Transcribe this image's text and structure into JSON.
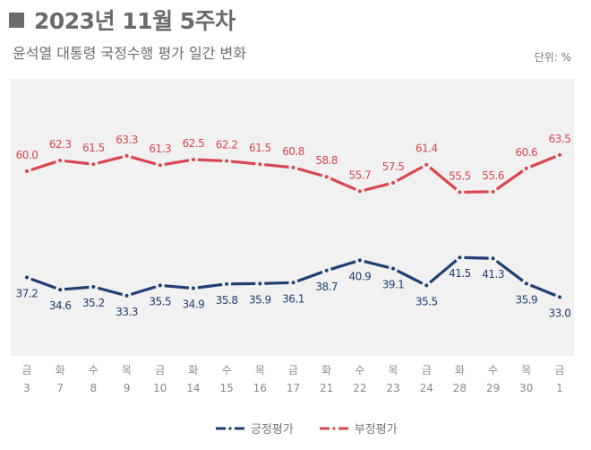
{
  "header": {
    "title": "2023년 11월 5주차",
    "subtitle": "윤석열 대통령 국정수행 평가 일간 변화",
    "unit": "단위: %"
  },
  "chart_data": {
    "type": "line",
    "title": "2023년 11월 5주차",
    "subtitle": "윤석열 대통령 국정수행 평가 일간 변화",
    "unit": "%",
    "xlabel": "",
    "ylabel": "",
    "x_weekday": [
      "금",
      "화",
      "수",
      "목",
      "금",
      "화",
      "수",
      "목",
      "금",
      "화",
      "수",
      "목",
      "금",
      "화",
      "수",
      "목",
      "금"
    ],
    "x": [
      "3",
      "7",
      "8",
      "9",
      "10",
      "14",
      "15",
      "16",
      "17",
      "21",
      "22",
      "23",
      "24",
      "28",
      "29",
      "30",
      "1"
    ],
    "series": [
      {
        "name": "부정평가",
        "color": "#d9464f",
        "values": [
          60.0,
          62.3,
          61.5,
          63.3,
          61.3,
          62.5,
          62.2,
          61.5,
          60.8,
          58.8,
          55.7,
          57.5,
          61.4,
          55.5,
          55.6,
          60.6,
          63.5
        ],
        "labels": [
          "60.0",
          "62.3",
          "61.5",
          "63.3",
          "61.3",
          "62.5",
          "62.2",
          "61.5",
          "60.8",
          "58.8",
          "55.7",
          "57.5",
          "61.4",
          "55.5",
          "55.6",
          "60.6",
          "63.5"
        ]
      },
      {
        "name": "긍정평가",
        "color": "#1f3f73",
        "values": [
          37.2,
          34.6,
          35.2,
          33.3,
          35.5,
          34.9,
          35.8,
          35.9,
          36.1,
          38.7,
          40.9,
          39.1,
          35.5,
          41.5,
          41.3,
          35.9,
          33.0
        ],
        "labels": [
          "37.2",
          "34.6",
          "35.2",
          "33.3",
          "35.5",
          "34.9",
          "35.8",
          "35.9",
          "36.1",
          "38.7",
          "40.9",
          "39.1",
          "35.5",
          "41.5",
          "41.3",
          "35.9",
          "33.0"
        ]
      }
    ],
    "grid": false,
    "legend": "bottom-center"
  },
  "legend": {
    "positive": "긍정평가",
    "negative": "부정평가"
  }
}
